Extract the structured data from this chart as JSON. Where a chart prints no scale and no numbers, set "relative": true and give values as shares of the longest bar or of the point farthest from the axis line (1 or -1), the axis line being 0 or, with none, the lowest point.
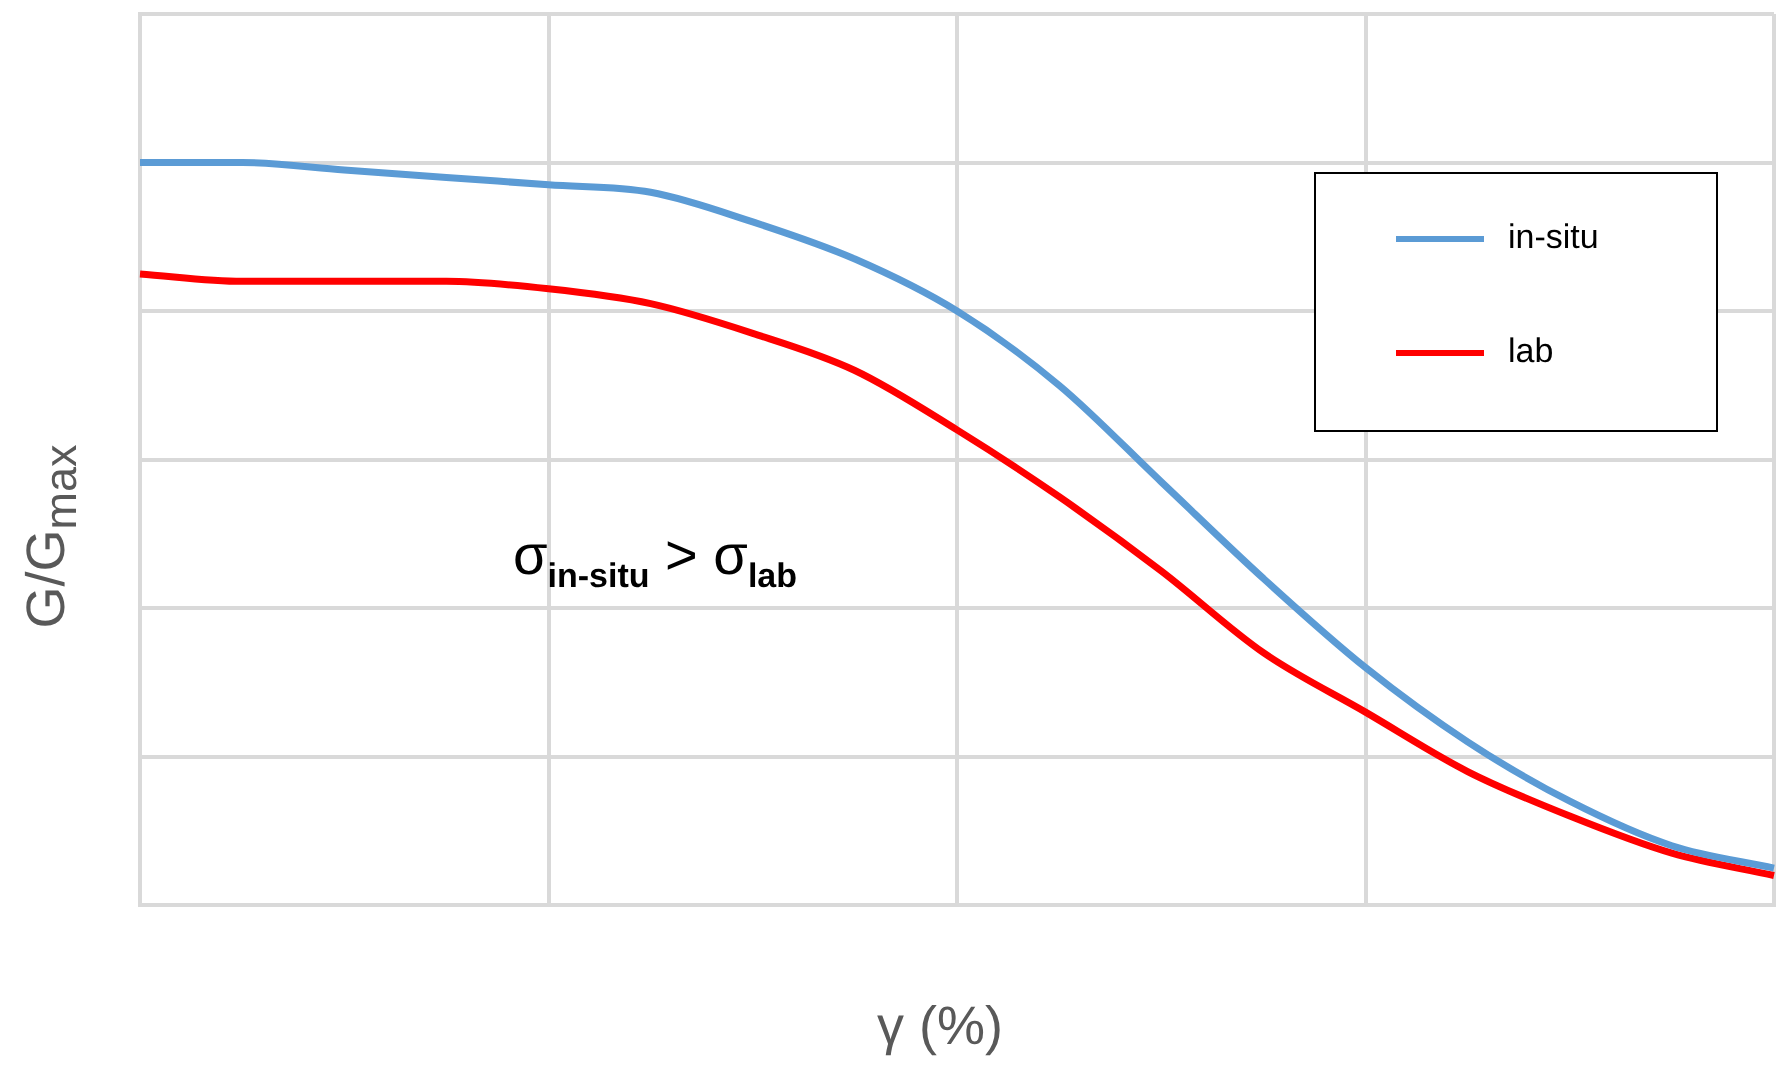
{
  "chart_data": {
    "type": "line",
    "relative": true,
    "xlabel": "γ (%)",
    "ylabel": "G/G$_{max}$",
    "categories": [
      null,
      null,
      null,
      null,
      null,
      null,
      null,
      null,
      null,
      null,
      null,
      null,
      null,
      null,
      null,
      null,
      null
    ],
    "series": [
      {
        "name": "in-situ",
        "color": "#5b9bd5",
        "values": [
          1,
          1,
          0.99,
          0.98,
          0.97,
          0.96,
          0.92,
          0.87,
          0.8,
          0.7,
          0.57,
          0.44,
          0.32,
          0.22,
          0.14,
          0.08,
          0.05
        ]
      },
      {
        "name": "lab",
        "color": "#ff0000",
        "values": [
          0.85,
          0.84,
          0.84,
          0.84,
          0.83,
          0.81,
          0.77,
          0.72,
          0.64,
          0.55,
          0.45,
          0.34,
          0.26,
          0.18,
          0.12,
          0.07,
          0.04
        ]
      }
    ],
    "annotations": [
      "σ$_{in-situ}$ > σ$_{lab}$"
    ],
    "grid": true,
    "legend": "top right",
    "marker": "none",
    "line_style": "solid"
  }
}
